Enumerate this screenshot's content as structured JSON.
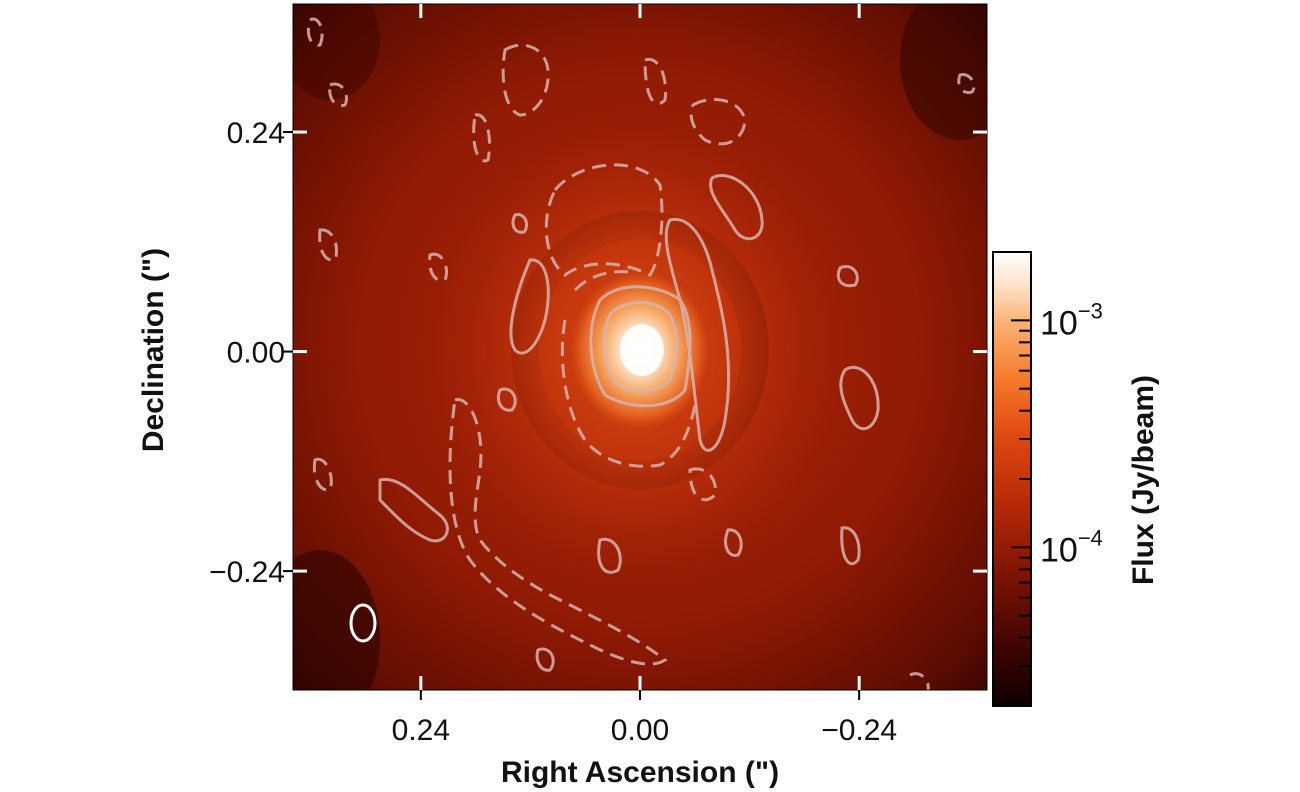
{
  "chart_data": {
    "type": "heatmap",
    "title": "",
    "xlabel": "Right Ascension (\")",
    "ylabel": "Declination (\")",
    "xlim": [
      0.38,
      -0.38
    ],
    "ylim": [
      -0.37,
      0.38
    ],
    "x_ticks": [
      {
        "value": 0.24,
        "label": "0.24"
      },
      {
        "value": 0.0,
        "label": "0.00"
      },
      {
        "value": -0.24,
        "label": "-0.24"
      }
    ],
    "y_ticks": [
      {
        "value": 0.24,
        "label": "0.24"
      },
      {
        "value": 0.0,
        "label": "0.00"
      },
      {
        "value": -0.24,
        "label": "-0.24"
      }
    ],
    "colorbar": {
      "label": "Flux (Jy/beam)",
      "scale": "log",
      "range": [
        2e-05,
        0.002
      ],
      "ticks": [
        {
          "value": 0.001,
          "label_base": "10",
          "label_exp": "-3"
        },
        {
          "value": 0.0001,
          "label_base": "10",
          "label_exp": "-4"
        }
      ],
      "colors": [
        "#0d0000",
        "#3a0400",
        "#7a1202",
        "#b82a08",
        "#e04a12",
        "#f57a2a",
        "#fbb070",
        "#fde4cc",
        "#ffffff"
      ]
    },
    "peak": {
      "x": 0.0,
      "y": 0.0
    },
    "beam": {
      "x": 0.29,
      "y": -0.29,
      "major": 0.04,
      "minor": 0.03
    },
    "contours": {
      "positive_style": "solid",
      "negative_style": "dashed",
      "color": "#d8b4ae"
    }
  }
}
